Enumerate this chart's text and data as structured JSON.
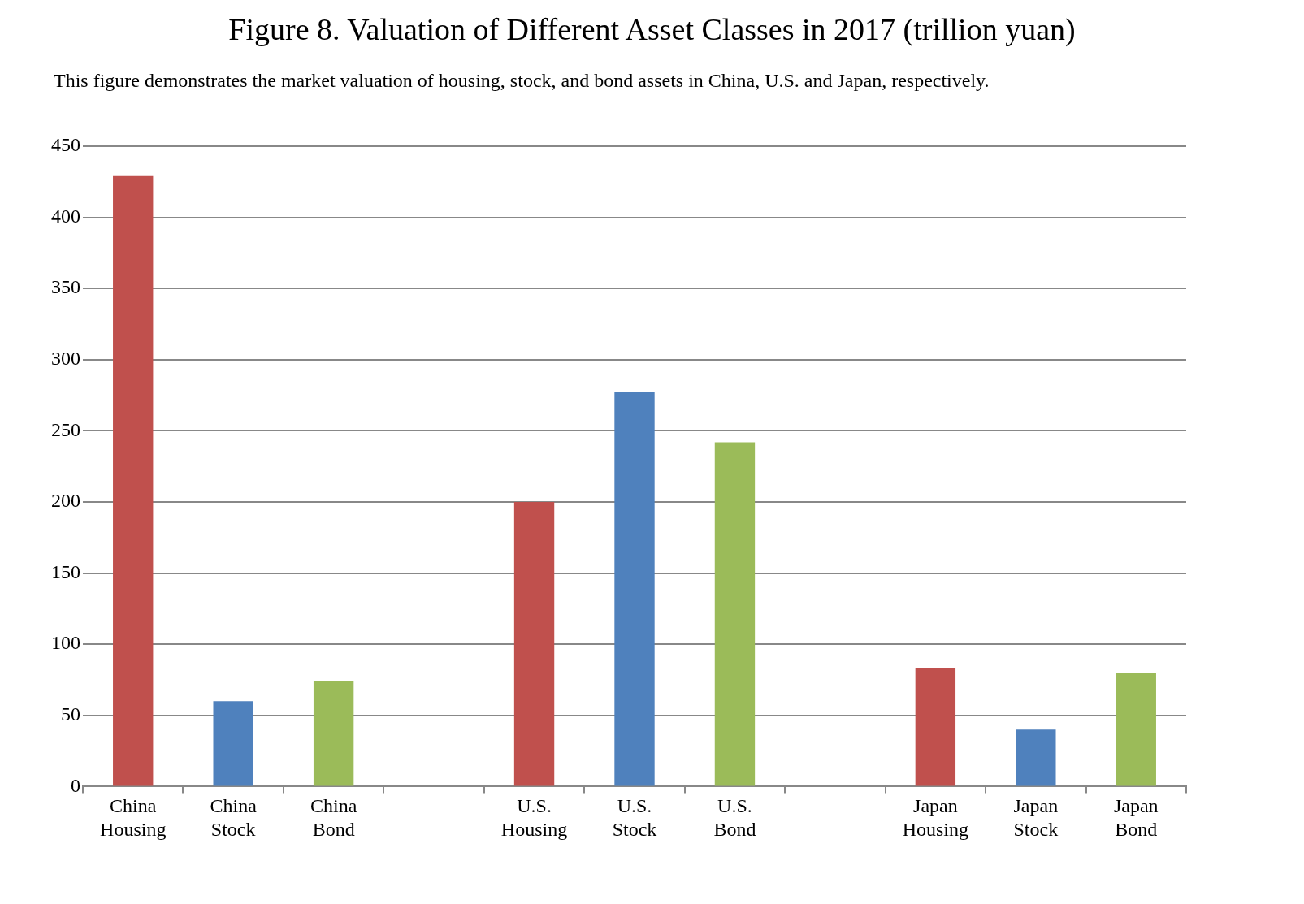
{
  "chart_data": {
    "type": "bar",
    "title": "Figure 8. Valuation of Different Asset Classes in 2017 (trillion yuan)",
    "subtitle": "This figure demonstrates the market valuation of housing, stock, and bond assets in China, U.S. and Japan, respectively.",
    "categories": [
      "China Housing",
      "China Stock",
      "China Bond",
      null,
      "U.S. Housing",
      "U.S. Stock",
      "U.S. Bond",
      null,
      "Japan Housing",
      "Japan Stock",
      "Japan Bond"
    ],
    "values": [
      429,
      60,
      74,
      null,
      200,
      277,
      242,
      null,
      83,
      40,
      80
    ],
    "colors": [
      "#c0504d",
      "#4f81bd",
      "#9bbb59",
      "#ffffff",
      "#c0504d",
      "#4f81bd",
      "#9bbb59",
      "#ffffff",
      "#c0504d",
      "#4f81bd",
      "#9bbb59"
    ],
    "ylim": [
      0,
      450
    ],
    "yticks": [
      0,
      50,
      100,
      150,
      200,
      250,
      300,
      350,
      400,
      450
    ],
    "grid": "y",
    "legend": false
  }
}
